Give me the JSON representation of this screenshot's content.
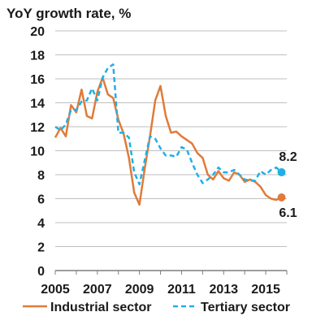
{
  "chart_data": {
    "type": "line",
    "title": "",
    "ylabel": "YoY growth rate, %",
    "xlabel": "",
    "xlim": [
      2005,
      2016
    ],
    "ylim": [
      0,
      20
    ],
    "y_ticks": [
      0,
      2,
      4,
      6,
      8,
      10,
      12,
      14,
      16,
      18,
      20
    ],
    "x_ticks": [
      2005,
      2007,
      2009,
      2011,
      2013,
      2015
    ],
    "y_tick_labels": [
      "0",
      "2",
      "4",
      "6",
      "8",
      "10",
      "12",
      "14",
      "16",
      "18",
      "20"
    ],
    "x_tick_labels": [
      "2005",
      "2007",
      "2009",
      "2011",
      "2013",
      "2015"
    ],
    "grid": "horizontal",
    "legend_position": "bottom",
    "series": [
      {
        "name": "Industrial sector",
        "style": "solid",
        "color": "#E07B39",
        "x": [
          2005.0,
          2005.25,
          2005.5,
          2005.75,
          2006.0,
          2006.25,
          2006.5,
          2006.75,
          2007.0,
          2007.25,
          2007.5,
          2007.75,
          2008.0,
          2008.25,
          2008.5,
          2008.75,
          2009.0,
          2009.25,
          2009.5,
          2009.75,
          2010.0,
          2010.25,
          2010.5,
          2010.75,
          2011.0,
          2011.25,
          2011.5,
          2011.75,
          2012.0,
          2012.25,
          2012.5,
          2012.75,
          2013.0,
          2013.25,
          2013.5,
          2013.75,
          2014.0,
          2014.25,
          2014.5,
          2014.75,
          2015.0,
          2015.25,
          2015.5,
          2015.75
        ],
        "values": [
          11.1,
          11.9,
          11.2,
          13.8,
          13.2,
          15.1,
          12.9,
          12.7,
          14.9,
          16.1,
          14.7,
          14.4,
          12.6,
          11.4,
          9.4,
          6.5,
          5.5,
          8.5,
          11.2,
          14.2,
          15.4,
          12.9,
          11.5,
          11.6,
          11.2,
          10.9,
          10.6,
          9.8,
          9.4,
          8.0,
          7.6,
          8.3,
          7.7,
          7.5,
          8.2,
          8.0,
          7.4,
          7.6,
          7.4,
          7.0,
          6.3,
          6.0,
          5.9,
          6.1
        ]
      },
      {
        "name": "Tertiary sector",
        "style": "dashed",
        "color": "#1FB0E6",
        "x": [
          2005.0,
          2005.25,
          2005.5,
          2005.75,
          2006.0,
          2006.25,
          2006.5,
          2006.75,
          2007.0,
          2007.25,
          2007.5,
          2007.75,
          2008.0,
          2008.25,
          2008.5,
          2008.75,
          2009.0,
          2009.25,
          2009.5,
          2009.75,
          2010.0,
          2010.25,
          2010.5,
          2010.75,
          2011.0,
          2011.25,
          2011.5,
          2011.75,
          2012.0,
          2012.25,
          2012.5,
          2012.75,
          2013.0,
          2013.25,
          2013.5,
          2013.75,
          2014.0,
          2014.25,
          2014.5,
          2014.75,
          2015.0,
          2015.25,
          2015.5,
          2015.75
        ],
        "values": [
          12.0,
          11.7,
          12.2,
          13.4,
          13.4,
          14.1,
          14.2,
          15.2,
          14.2,
          16.1,
          16.9,
          17.2,
          11.5,
          11.5,
          11.1,
          8.2,
          7.2,
          9.2,
          11.2,
          11.0,
          10.2,
          9.6,
          9.6,
          9.5,
          10.3,
          10.1,
          9.0,
          8.0,
          7.3,
          7.6,
          8.0,
          8.6,
          8.2,
          8.2,
          8.4,
          8.0,
          7.6,
          7.5,
          7.5,
          8.3,
          8.0,
          8.4,
          8.6,
          8.2
        ]
      }
    ],
    "end_labels": [
      {
        "series": "Tertiary sector",
        "text": "8.2",
        "value": 8.2
      },
      {
        "series": "Industrial sector",
        "text": "6.1",
        "value": 6.1
      }
    ]
  }
}
